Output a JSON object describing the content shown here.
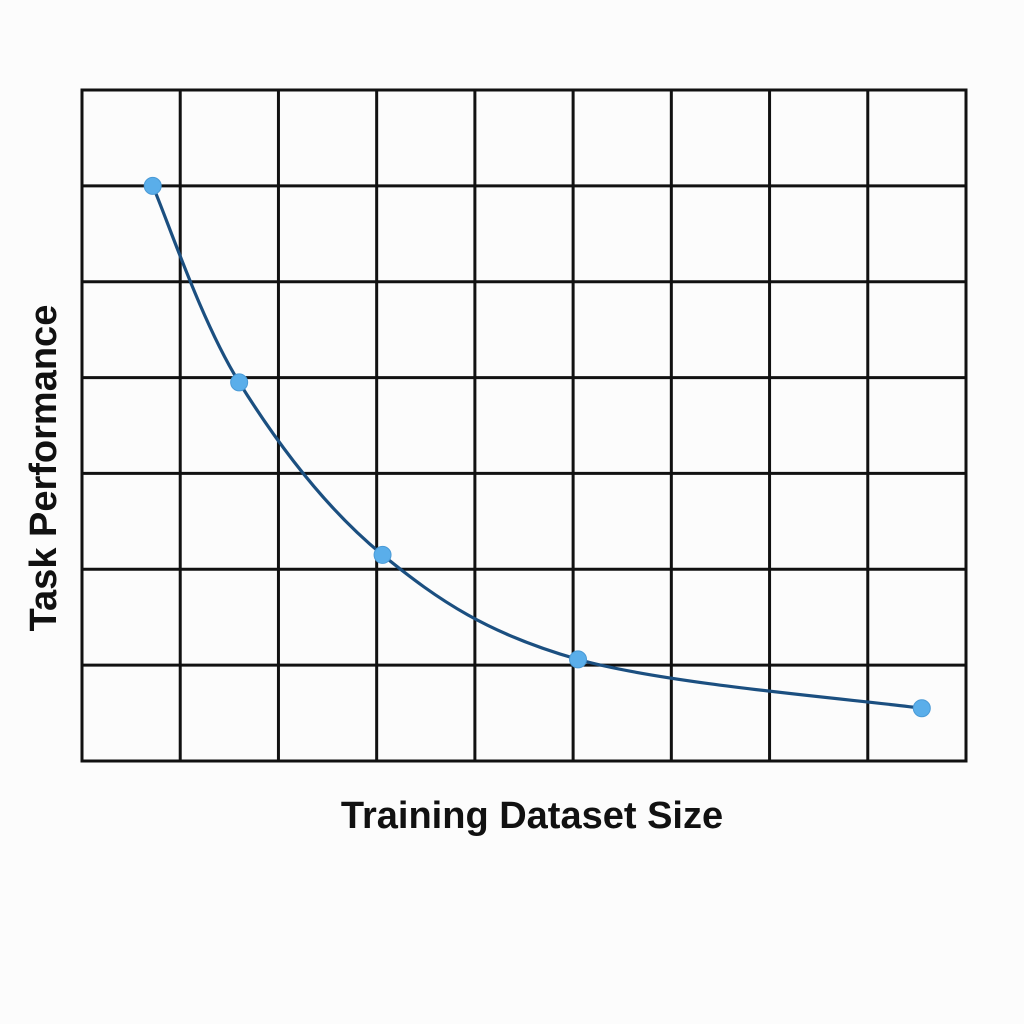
{
  "chart_data": {
    "type": "line",
    "title": "",
    "xlabel": "Training Dataset Size",
    "ylabel": "Task Performance",
    "grid": true,
    "legend": "none",
    "xlim": [
      0,
      9
    ],
    "ylim": [
      0,
      7
    ],
    "x_gridlines": 9,
    "y_gridlines": 7,
    "series": [
      {
        "color": "#1b4f80",
        "marker_color": "#5aaeea",
        "points": [
          {
            "x": 0.72,
            "y": 6.0
          },
          {
            "x": 1.6,
            "y": 3.95
          },
          {
            "x": 3.06,
            "y": 2.15
          },
          {
            "x": 5.05,
            "y": 1.06
          },
          {
            "x": 8.55,
            "y": 0.55
          }
        ]
      }
    ]
  }
}
